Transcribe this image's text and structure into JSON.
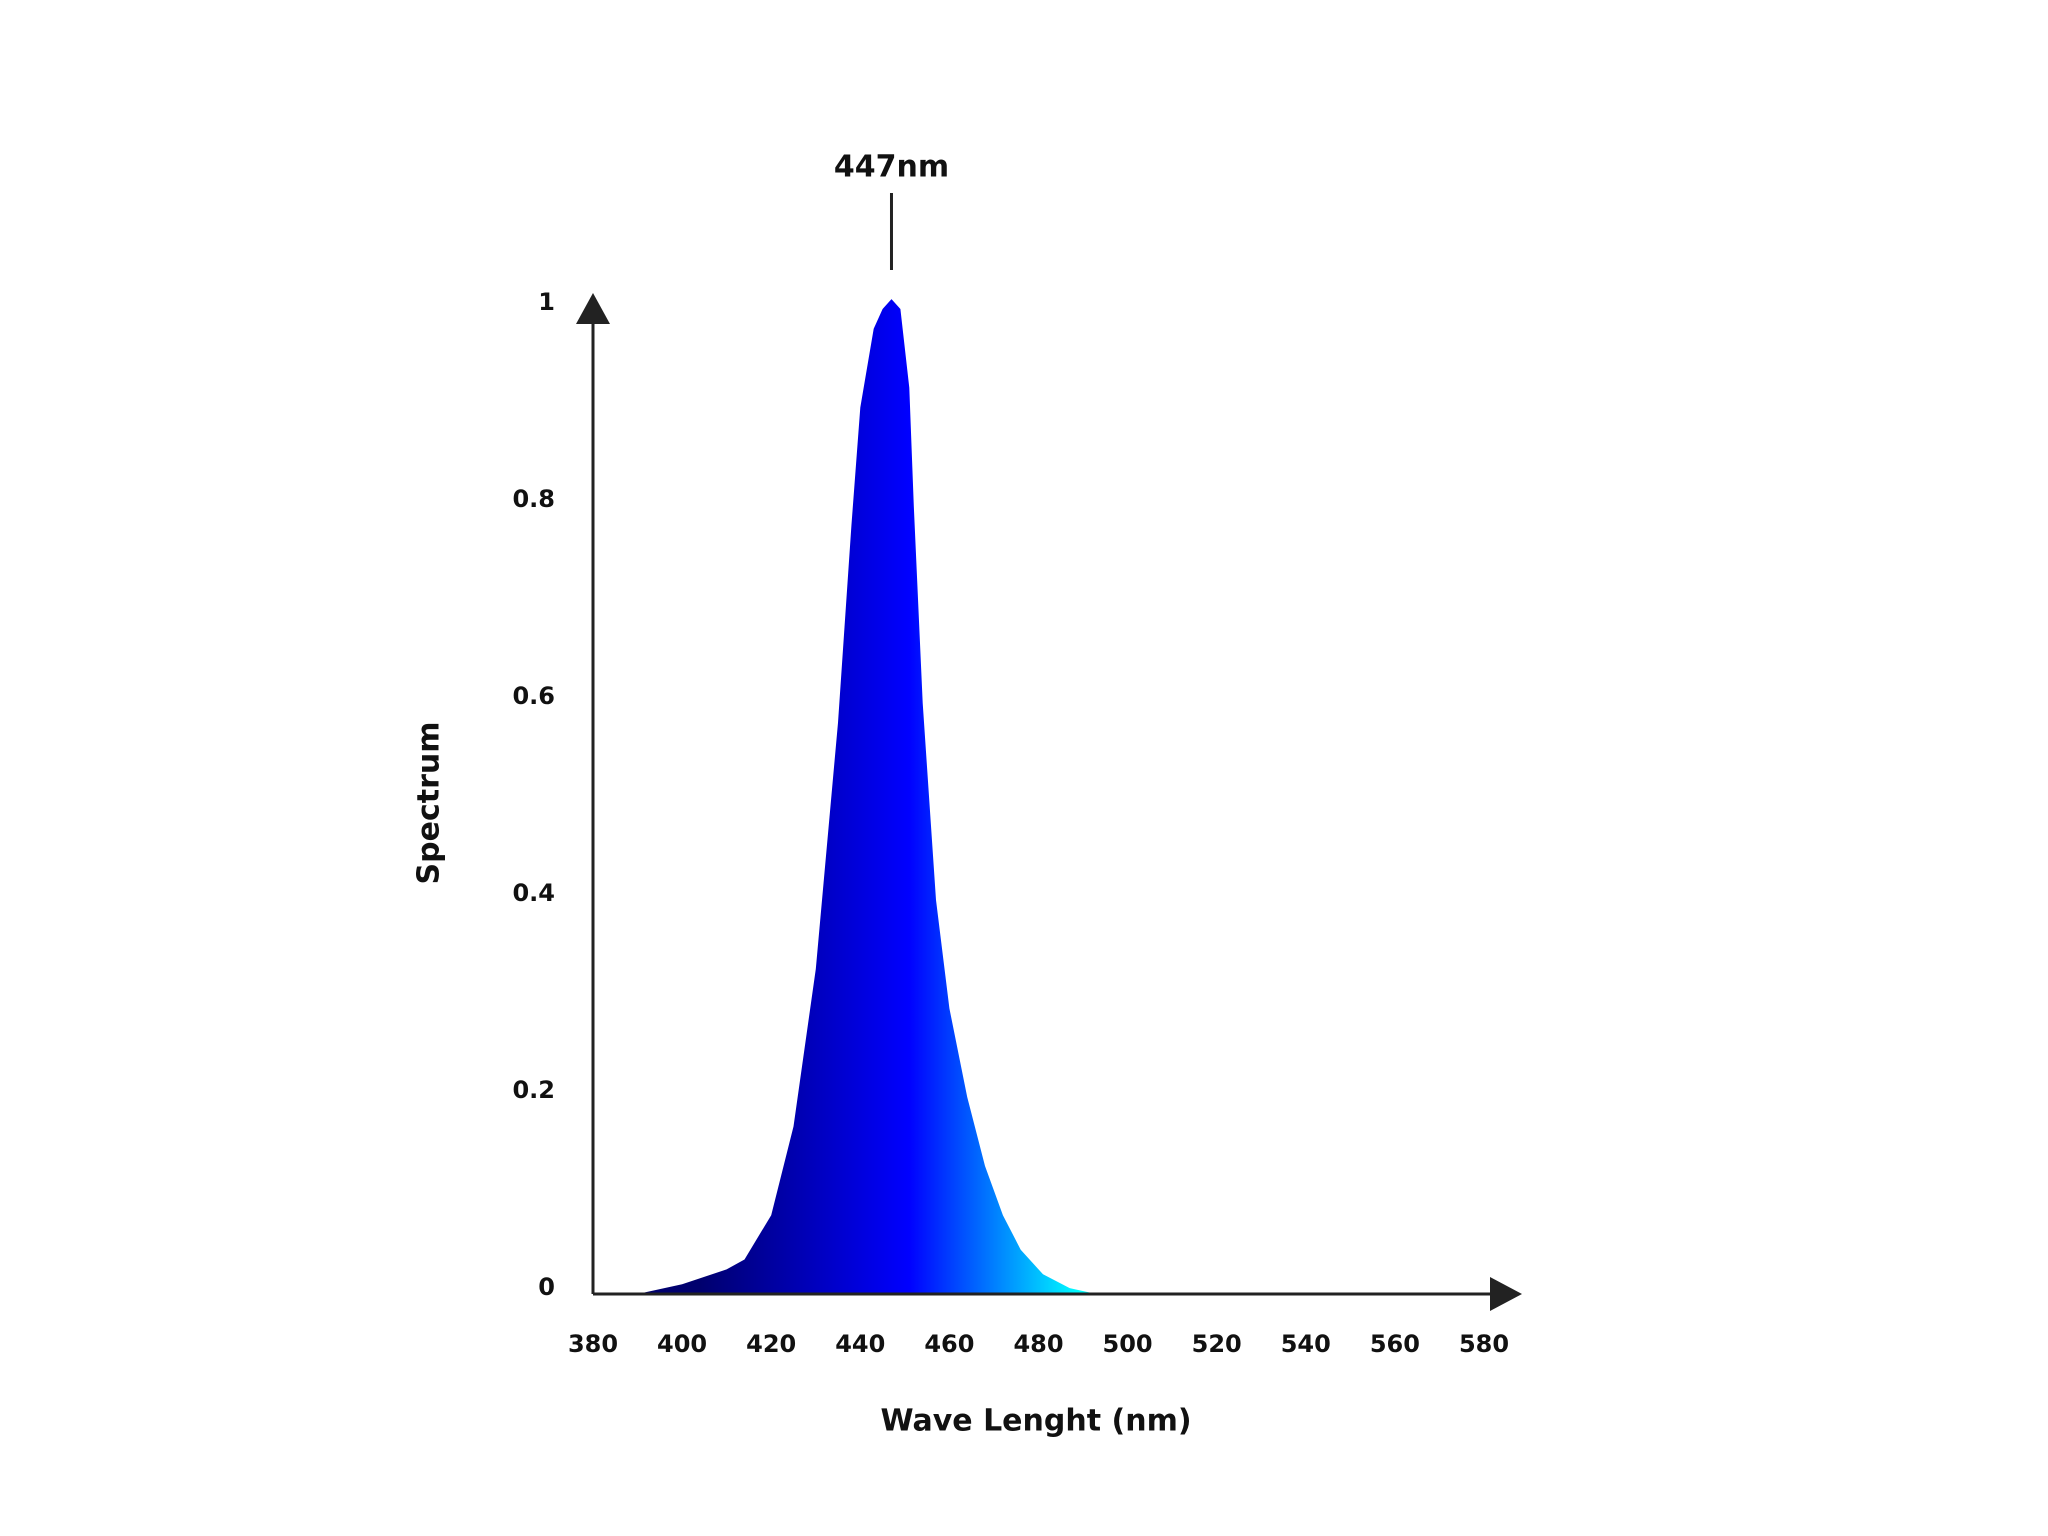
{
  "chart_data": {
    "type": "area",
    "x_label": "Wave Lenght (nm)",
    "y_label": "Spectrum",
    "x": [
      390,
      400,
      410,
      414,
      420,
      425,
      430,
      435,
      438,
      440,
      443,
      445,
      447,
      449,
      451,
      452,
      454,
      457,
      460,
      464,
      468,
      472,
      476,
      481,
      487,
      493,
      500,
      580
    ],
    "values": [
      0,
      0.01,
      0.025,
      0.035,
      0.08,
      0.17,
      0.33,
      0.58,
      0.78,
      0.9,
      0.98,
      1.0,
      1.01,
      1.0,
      0.92,
      0.8,
      0.6,
      0.4,
      0.29,
      0.2,
      0.13,
      0.08,
      0.045,
      0.02,
      0.006,
      0,
      0,
      0
    ],
    "colors": [
      "#00006e",
      "#0000ff",
      "#00ffff"
    ],
    "xlim": [
      380,
      580
    ],
    "xticks": [
      380,
      400,
      420,
      440,
      460,
      480,
      500,
      520,
      540,
      560,
      580
    ],
    "ylim": [
      0,
      1
    ],
    "yticks": [
      0,
      0.2,
      0.4,
      0.6,
      0.8,
      1
    ],
    "annotation": {
      "text": "447nm",
      "x": 447
    },
    "grid": false
  }
}
